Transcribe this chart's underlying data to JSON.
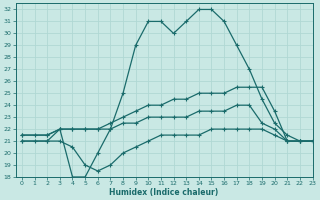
{
  "xlabel": "Humidex (Indice chaleur)",
  "xlim": [
    -0.5,
    23
  ],
  "ylim": [
    18,
    32.5
  ],
  "xticks": [
    0,
    1,
    2,
    3,
    4,
    5,
    6,
    7,
    8,
    9,
    10,
    11,
    12,
    13,
    14,
    15,
    16,
    17,
    18,
    19,
    20,
    21,
    22,
    23
  ],
  "yticks": [
    18,
    19,
    20,
    21,
    22,
    23,
    24,
    25,
    26,
    27,
    28,
    29,
    30,
    31,
    32
  ],
  "bg_color": "#c9e8e4",
  "grid_color": "#b0d8d4",
  "line_color": "#1a6b6b",
  "line1_x": [
    0,
    1,
    2,
    3,
    4,
    5,
    6,
    7,
    8,
    9,
    10,
    11,
    12,
    13,
    14,
    15,
    16,
    17,
    18,
    19,
    20,
    21,
    22,
    23
  ],
  "line1_y": [
    21.5,
    21.5,
    21.5,
    22,
    22,
    22,
    22,
    22.5,
    23,
    23.5,
    24,
    24,
    24.5,
    24.5,
    25,
    25,
    25,
    25.5,
    25.5,
    25.5,
    23.5,
    21,
    21,
    21
  ],
  "line2_x": [
    0,
    1,
    2,
    3,
    4,
    5,
    6,
    7,
    8,
    9,
    10,
    11,
    12,
    13,
    14,
    15,
    16,
    17,
    18,
    19,
    20,
    21,
    22,
    23
  ],
  "line2_y": [
    21,
    21,
    21,
    22,
    22,
    22,
    22,
    22,
    22.5,
    22.5,
    23,
    23,
    23,
    23,
    23.5,
    23.5,
    23.5,
    24,
    24,
    22.5,
    22,
    21,
    21,
    21
  ],
  "line3_x": [
    0,
    2,
    3,
    4,
    5,
    6,
    7,
    8,
    9,
    10,
    11,
    12,
    13,
    14,
    15,
    16,
    17,
    18,
    19,
    20,
    21,
    22,
    23
  ],
  "line3_y": [
    21,
    21,
    21,
    20.5,
    19,
    18.5,
    19,
    20,
    20.5,
    21,
    21.5,
    21.5,
    21.5,
    21.5,
    22,
    22,
    22,
    22,
    22,
    21.5,
    21,
    21,
    21
  ],
  "line4_x": [
    0,
    2,
    3,
    4,
    5,
    6,
    7,
    8,
    9,
    10,
    11,
    12,
    13,
    14,
    15,
    16,
    17,
    18,
    19,
    20,
    21,
    22,
    23
  ],
  "line4_y": [
    21.5,
    21.5,
    22,
    18,
    18,
    20,
    22,
    25,
    29,
    31,
    31,
    30,
    31,
    32,
    32,
    31,
    29,
    27,
    24.5,
    22.5,
    21.5,
    21,
    21
  ]
}
